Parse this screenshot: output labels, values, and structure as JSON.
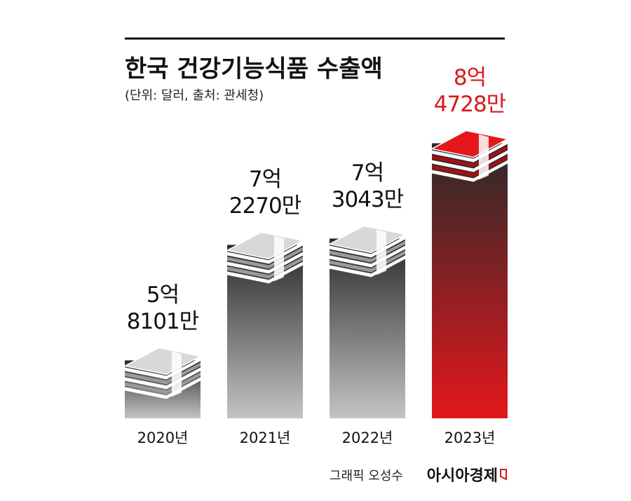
{
  "chart_data": {
    "type": "bar",
    "title": "한국 건강기능식품 수출액",
    "subtitle": "(단위: 달러, 출처: 관세청)",
    "categories": [
      "2020년",
      "2021년",
      "2022년",
      "2023년"
    ],
    "values": [
      581010000,
      722700000,
      730430000,
      847280000
    ],
    "value_labels": [
      "5억\n8101만",
      "7억\n2270만",
      "7억\n3043만",
      "8억\n4728만"
    ],
    "colors": [
      "#c4c4c4",
      "#c4c4c4",
      "#c4c4c4",
      "#e3171c"
    ],
    "label_colors": [
      "#111111",
      "#111111",
      "#111111",
      "#d71920"
    ],
    "ylim": [
      510000000,
      870000000
    ],
    "credit": "그래픽 오성수",
    "brand": "아시아경제"
  }
}
